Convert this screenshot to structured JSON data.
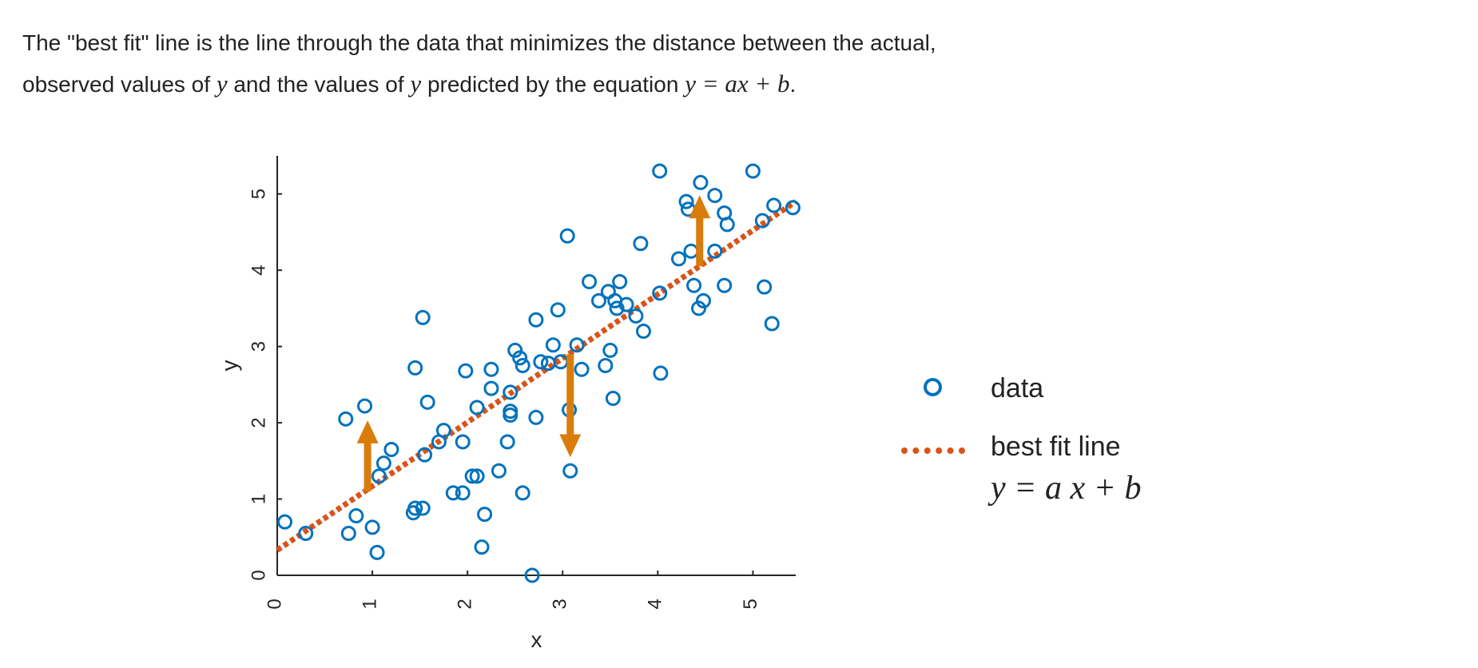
{
  "intro": {
    "line1": "The \"best fit\" line is the line through the data that minimizes the distance between the actual,",
    "line2_a": "observed values of ",
    "var_y": "y",
    "line2_b": " and the values of ",
    "line2_c": " predicted by the equation ",
    "equation": "y = ax + b",
    "period": "."
  },
  "legend": {
    "data_label": "data",
    "fit_label": "best fit line",
    "fit_equation": "y = a x + b"
  },
  "colors": {
    "data": "#0072BD",
    "fit": "#D95319",
    "arrow": "#D97C0B",
    "axis": "#262626"
  },
  "chart_data": {
    "type": "scatter",
    "xlabel": "x",
    "ylabel": "y",
    "xlim": [
      0,
      5.45
    ],
    "ylim": [
      0,
      5.5
    ],
    "xticks": [
      0,
      1,
      2,
      3,
      4,
      5
    ],
    "yticks": [
      0,
      1,
      2,
      3,
      4,
      5
    ],
    "grid": false,
    "legend_position": "right",
    "series": [
      {
        "name": "data",
        "marker": "open-circle",
        "points": [
          [
            0.08,
            0.7
          ],
          [
            0.3,
            0.55
          ],
          [
            0.75,
            0.55
          ],
          [
            0.83,
            0.78
          ],
          [
            1.0,
            0.63
          ],
          [
            1.05,
            0.3
          ],
          [
            0.72,
            2.05
          ],
          [
            0.92,
            2.22
          ],
          [
            1.07,
            1.3
          ],
          [
            1.12,
            1.47
          ],
          [
            1.2,
            1.65
          ],
          [
            1.43,
            0.82
          ],
          [
            1.45,
            0.88
          ],
          [
            1.53,
            0.88
          ],
          [
            1.55,
            1.58
          ],
          [
            1.58,
            2.27
          ],
          [
            1.45,
            2.72
          ],
          [
            1.53,
            3.38
          ],
          [
            1.7,
            1.75
          ],
          [
            1.75,
            1.9
          ],
          [
            1.85,
            1.08
          ],
          [
            1.95,
            1.08
          ],
          [
            1.95,
            1.75
          ],
          [
            1.98,
            2.68
          ],
          [
            2.05,
            1.3
          ],
          [
            2.1,
            1.3
          ],
          [
            2.1,
            2.2
          ],
          [
            2.15,
            0.37
          ],
          [
            2.18,
            0.8
          ],
          [
            2.25,
            2.45
          ],
          [
            2.25,
            2.7
          ],
          [
            2.33,
            1.37
          ],
          [
            2.42,
            1.75
          ],
          [
            2.45,
            2.1
          ],
          [
            2.45,
            2.15
          ],
          [
            2.45,
            2.4
          ],
          [
            2.5,
            2.95
          ],
          [
            2.55,
            2.85
          ],
          [
            2.58,
            2.75
          ],
          [
            2.58,
            1.08
          ],
          [
            2.68,
            0.0
          ],
          [
            2.72,
            3.35
          ],
          [
            2.72,
            2.07
          ],
          [
            2.77,
            2.8
          ],
          [
            2.85,
            2.78
          ],
          [
            2.9,
            3.02
          ],
          [
            2.95,
            3.48
          ],
          [
            2.98,
            2.8
          ],
          [
            3.05,
            4.45
          ],
          [
            3.07,
            2.17
          ],
          [
            3.08,
            1.37
          ],
          [
            3.15,
            3.02
          ],
          [
            3.2,
            2.7
          ],
          [
            3.28,
            3.85
          ],
          [
            3.38,
            3.6
          ],
          [
            3.45,
            2.75
          ],
          [
            3.48,
            3.72
          ],
          [
            3.5,
            2.95
          ],
          [
            3.53,
            2.32
          ],
          [
            3.55,
            3.6
          ],
          [
            3.57,
            3.5
          ],
          [
            3.6,
            3.85
          ],
          [
            3.67,
            3.55
          ],
          [
            3.77,
            3.4
          ],
          [
            3.85,
            3.2
          ],
          [
            3.82,
            4.35
          ],
          [
            4.02,
            5.3
          ],
          [
            4.02,
            3.7
          ],
          [
            4.03,
            2.65
          ],
          [
            4.22,
            4.15
          ],
          [
            4.3,
            4.9
          ],
          [
            4.32,
            4.8
          ],
          [
            4.35,
            4.25
          ],
          [
            4.38,
            3.8
          ],
          [
            4.43,
            3.5
          ],
          [
            4.45,
            5.15
          ],
          [
            4.48,
            3.6
          ],
          [
            4.6,
            4.98
          ],
          [
            4.6,
            4.25
          ],
          [
            4.7,
            3.8
          ],
          [
            4.7,
            4.75
          ],
          [
            4.73,
            4.6
          ],
          [
            5.0,
            5.3
          ],
          [
            5.1,
            4.65
          ],
          [
            5.12,
            3.78
          ],
          [
            5.2,
            3.3
          ],
          [
            5.22,
            4.85
          ],
          [
            5.42,
            4.82
          ]
        ]
      },
      {
        "name": "best fit line",
        "style": "dotted",
        "x": [
          0,
          5.45
        ],
        "y": [
          0.33,
          4.9
        ]
      }
    ],
    "annotations": {
      "residual_arrows": [
        {
          "x": 0.95,
          "from_y": 1.1,
          "to_y": 2.08,
          "direction": "up"
        },
        {
          "x": 3.08,
          "from_y": 2.9,
          "to_y": 1.5,
          "direction": "down"
        },
        {
          "x": 4.44,
          "from_y": 4.05,
          "to_y": 5.03,
          "direction": "up"
        }
      ]
    }
  }
}
